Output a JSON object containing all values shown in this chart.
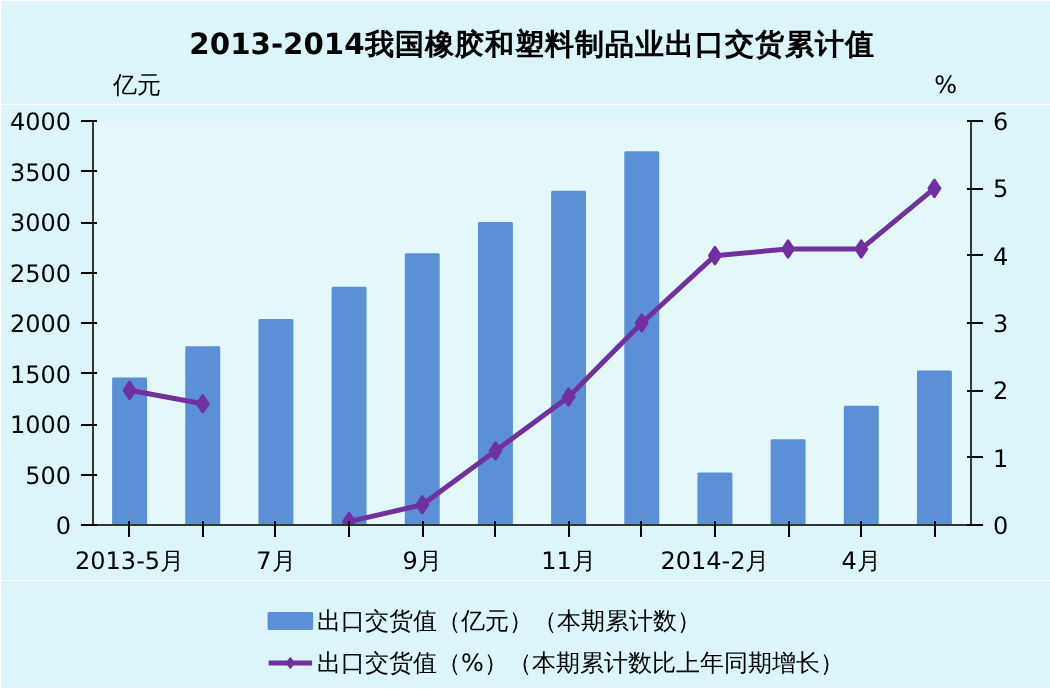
{
  "chart_data": {
    "type": "bar",
    "title": "2013-2014我国橡胶和塑料制品业出口交货累计值",
    "ylabel": "亿元",
    "y2label": "%",
    "categories": [
      "2013-5月",
      null,
      "7月",
      null,
      "9月",
      null,
      "11月",
      null,
      "2014-2月",
      null,
      "4月",
      null
    ],
    "series": [
      {
        "name": "出口交货值（亿元）（本期累计数）",
        "color": "#5b8fd6",
        "values": [
          1450,
          1760,
          2030,
          2350,
          2680,
          2990,
          3300,
          3690,
          510,
          840,
          1170,
          1520
        ]
      },
      {
        "name": "出口交货值（%）（本期累计数比上年同期增长）",
        "type": "line",
        "axis": "y2",
        "color": "#7030a0",
        "marker": "diamond",
        "values": [
          2.0,
          1.8,
          null,
          0.05,
          0.3,
          1.1,
          1.9,
          3.0,
          4.0,
          4.1,
          4.1,
          5.0
        ]
      }
    ],
    "ylim": [
      0,
      4000
    ],
    "yticks": [
      0,
      500,
      1000,
      1500,
      2000,
      2500,
      3000,
      3500,
      4000
    ],
    "y2lim": [
      0,
      6
    ],
    "y2ticks": [
      0,
      1,
      2,
      3,
      4,
      5,
      6
    ],
    "grid": false,
    "legend": "bottom"
  }
}
